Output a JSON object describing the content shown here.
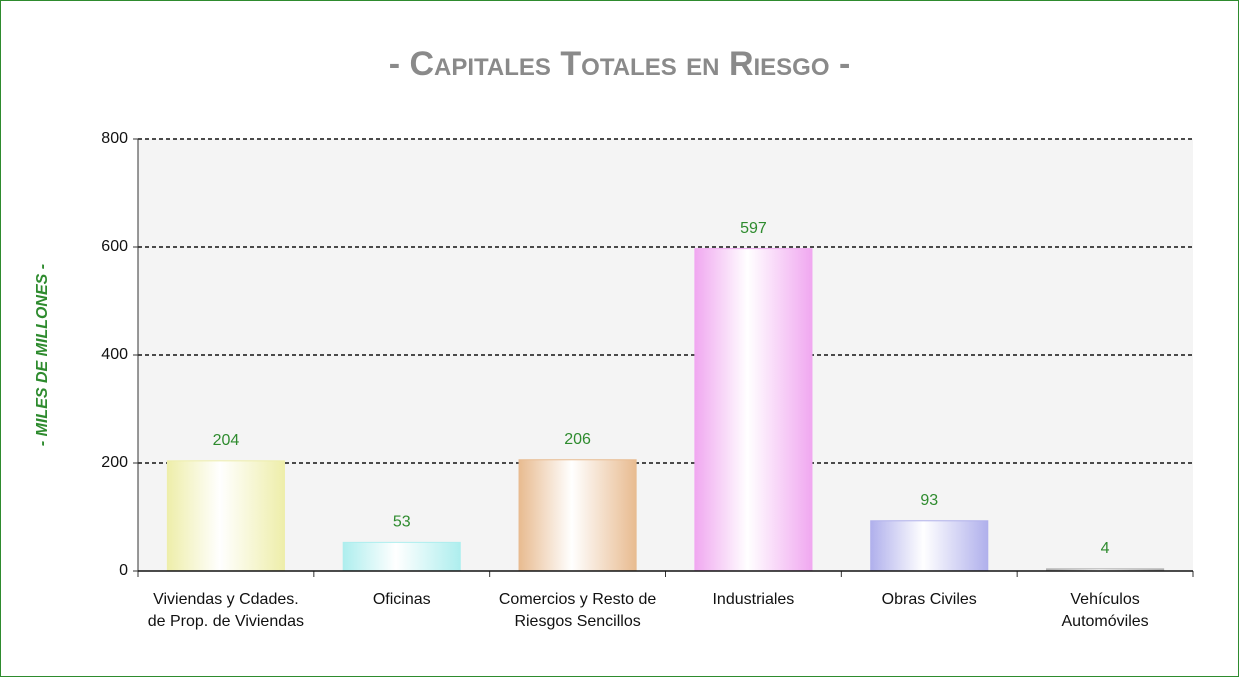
{
  "chart_data": {
    "type": "bar",
    "title": "- Capitales Totales en Riesgo -",
    "y_label": "- MILES DE MILLONES -",
    "categories": [
      "Viviendas y Cdades. de Prop. de Viviendas",
      "Oficinas",
      "Comercios y Resto de Riesgos Sencillos",
      "Industriales",
      "Obras Civiles",
      "Vehículos Automóviles"
    ],
    "values": [
      204,
      53,
      206,
      597,
      93,
      4
    ],
    "colors": [
      "#eeeeaa",
      "#aeeeee",
      "#e8bb90",
      "#f0a8f0",
      "#b0b0ec",
      "#b0b0b0"
    ],
    "value_label_color": "#2e8b2e",
    "ylim": [
      0,
      800
    ],
    "yticks": [
      0,
      200,
      400,
      600,
      800
    ],
    "grid": true
  }
}
